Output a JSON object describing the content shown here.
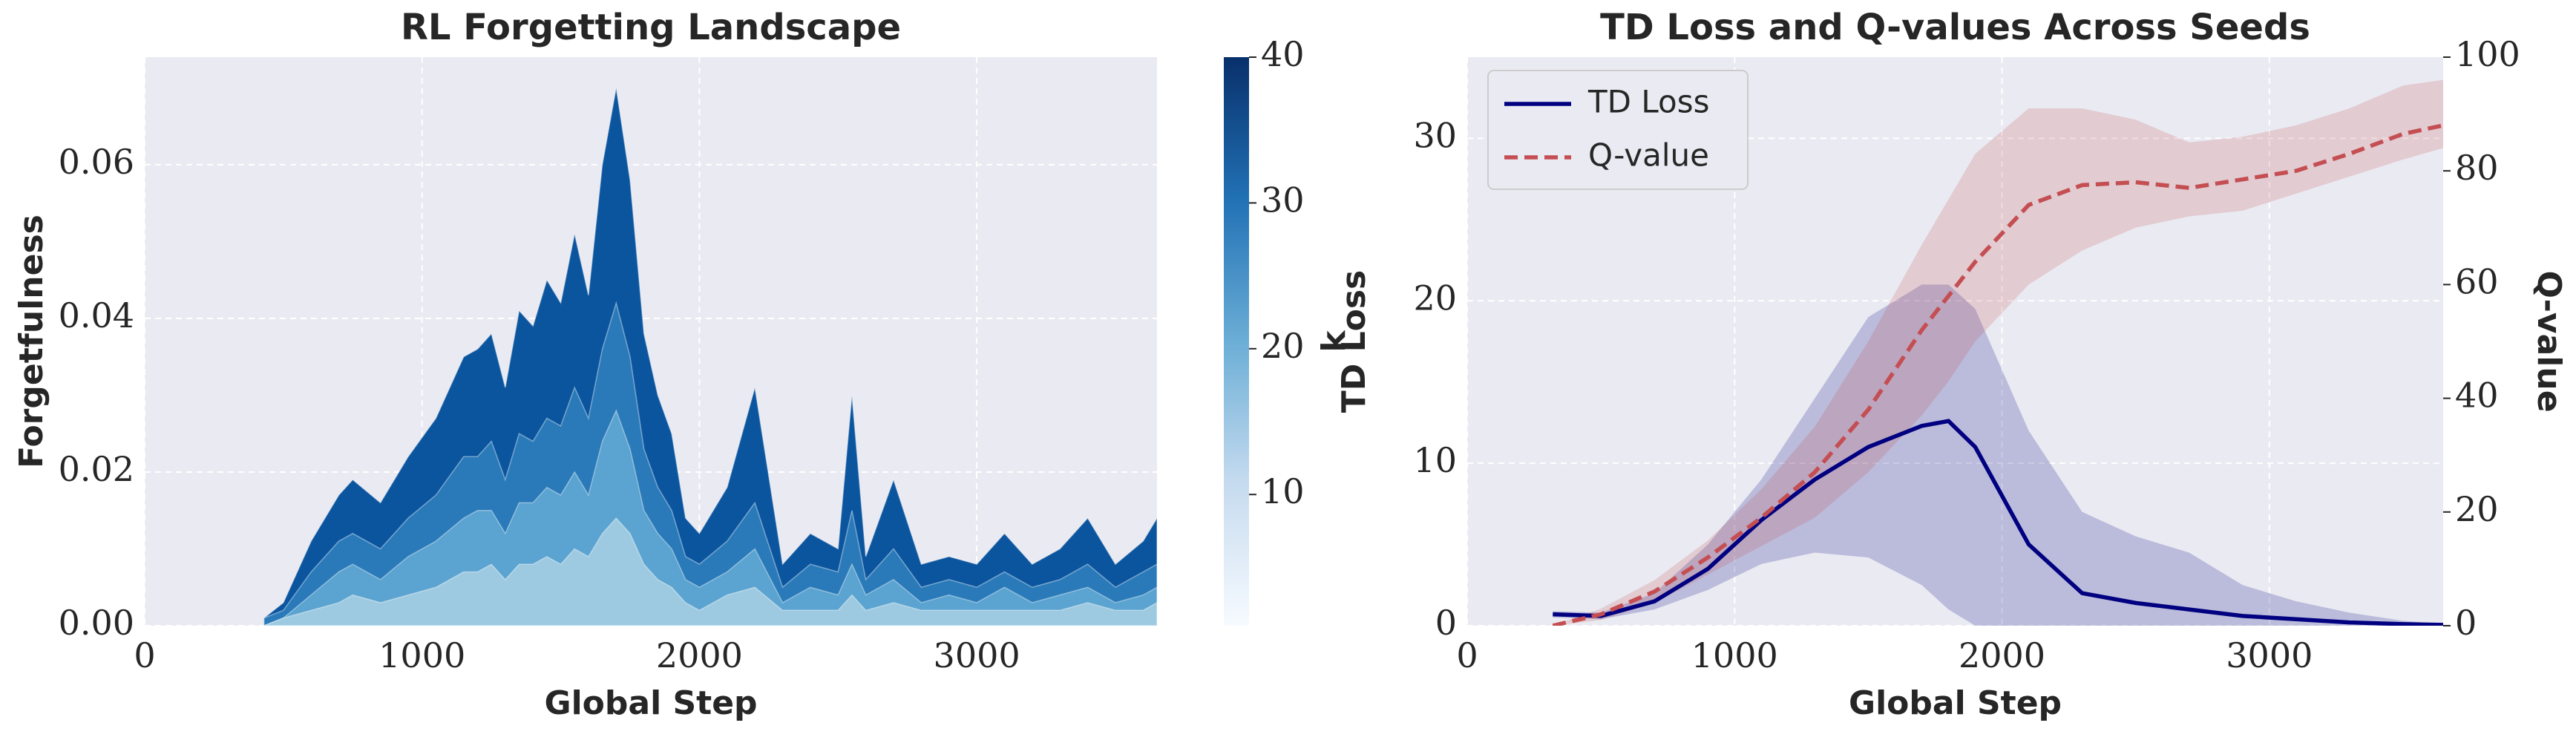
{
  "chart_data": [
    {
      "type": "area",
      "title": "RL Forgetting Landscape",
      "xlabel": "Global Step",
      "ylabel": "Forgetfulness",
      "x": [
        430,
        500,
        600,
        700,
        750,
        850,
        950,
        1050,
        1150,
        1200,
        1250,
        1300,
        1350,
        1400,
        1450,
        1500,
        1550,
        1600,
        1650,
        1700,
        1750,
        1800,
        1850,
        1900,
        1950,
        2000,
        2100,
        2200,
        2300,
        2400,
        2500,
        2550,
        2600,
        2700,
        2800,
        2900,
        3000,
        3100,
        3200,
        3300,
        3400,
        3500,
        3600,
        3650
      ],
      "series": [
        {
          "color": "#0b559f",
          "values": [
            0.001,
            0.003,
            0.011,
            0.017,
            0.019,
            0.016,
            0.022,
            0.027,
            0.035,
            0.036,
            0.038,
            0.031,
            0.041,
            0.039,
            0.045,
            0.042,
            0.051,
            0.043,
            0.06,
            0.07,
            0.058,
            0.038,
            0.03,
            0.025,
            0.014,
            0.012,
            0.018,
            0.031,
            0.008,
            0.012,
            0.01,
            0.03,
            0.009,
            0.019,
            0.008,
            0.009,
            0.008,
            0.012,
            0.008,
            0.01,
            0.014,
            0.008,
            0.011,
            0.014
          ]
        },
        {
          "color": "#2a7ab9",
          "values": [
            0.001,
            0.002,
            0.007,
            0.011,
            0.012,
            0.01,
            0.014,
            0.017,
            0.022,
            0.022,
            0.024,
            0.019,
            0.025,
            0.024,
            0.027,
            0.026,
            0.031,
            0.027,
            0.036,
            0.042,
            0.035,
            0.023,
            0.018,
            0.015,
            0.009,
            0.008,
            0.011,
            0.016,
            0.005,
            0.008,
            0.007,
            0.015,
            0.006,
            0.01,
            0.005,
            0.006,
            0.005,
            0.007,
            0.005,
            0.006,
            0.008,
            0.005,
            0.007,
            0.008
          ]
        },
        {
          "color": "#5ba3d0",
          "values": [
            0,
            0.001,
            0.004,
            0.007,
            0.008,
            0.006,
            0.009,
            0.011,
            0.014,
            0.015,
            0.015,
            0.012,
            0.016,
            0.016,
            0.018,
            0.017,
            0.02,
            0.017,
            0.024,
            0.028,
            0.023,
            0.015,
            0.012,
            0.01,
            0.006,
            0.005,
            0.007,
            0.01,
            0.003,
            0.005,
            0.004,
            0.008,
            0.004,
            0.006,
            0.003,
            0.004,
            0.003,
            0.005,
            0.003,
            0.004,
            0.005,
            0.003,
            0.004,
            0.005
          ]
        },
        {
          "color": "#9ecae1",
          "values": [
            0,
            0.001,
            0.002,
            0.003,
            0.004,
            0.003,
            0.004,
            0.005,
            0.007,
            0.007,
            0.008,
            0.006,
            0.008,
            0.008,
            0.009,
            0.008,
            0.01,
            0.009,
            0.012,
            0.014,
            0.012,
            0.008,
            0.006,
            0.005,
            0.003,
            0.002,
            0.004,
            0.005,
            0.002,
            0.002,
            0.002,
            0.004,
            0.002,
            0.003,
            0.002,
            0.002,
            0.002,
            0.002,
            0.002,
            0.002,
            0.003,
            0.002,
            0.002,
            0.003
          ]
        }
      ],
      "xlim": [
        0,
        3650
      ],
      "xticks": [
        0,
        1000,
        2000,
        3000
      ],
      "ylim": [
        0,
        0.074
      ],
      "yticks": [
        {
          "value": 0,
          "label": "0.00"
        },
        {
          "value": 0.02,
          "label": "0.02"
        },
        {
          "value": 0.04,
          "label": "0.04"
        },
        {
          "value": 0.06,
          "label": "0.06"
        }
      ],
      "grid": true,
      "colorbar": {
        "label": "k",
        "lim": [
          1,
          40
        ],
        "ticks": [
          10,
          20,
          30,
          40
        ]
      }
    },
    {
      "type": "line",
      "title": "TD Loss and Q-values Across Seeds",
      "xlabel": "Global Step",
      "ylabel": "TD Loss",
      "y2label": "Q-value",
      "x": [
        320,
        500,
        700,
        900,
        1100,
        1300,
        1500,
        1700,
        1800,
        1900,
        2100,
        2300,
        2500,
        2700,
        2900,
        3100,
        3300,
        3500,
        3650
      ],
      "series": [
        {
          "name": "TD Loss",
          "color": "#000080",
          "dashed": false,
          "values": [
            0.7,
            0.6,
            1.5,
            3.5,
            6.5,
            9,
            11,
            12.3,
            12.6,
            11,
            5,
            2,
            1.4,
            1.0,
            0.6,
            0.4,
            0.2,
            0.1,
            0.05
          ],
          "lower": [
            0.5,
            0.4,
            1,
            2.2,
            3.8,
            4.5,
            4.2,
            2.5,
            1,
            0,
            0,
            0,
            0,
            0,
            0,
            0,
            0,
            0,
            0
          ],
          "upper": [
            0.9,
            0.8,
            2,
            5,
            9,
            14,
            19,
            21,
            21,
            19.5,
            12,
            7,
            5.5,
            4.5,
            2.5,
            1.5,
            0.8,
            0.3,
            0.1
          ]
        },
        {
          "name": "Q-value",
          "color": "#c44e52",
          "dashed": true,
          "axis": "y2",
          "values": [
            0,
            2,
            6,
            12,
            19,
            27,
            38,
            52,
            58,
            64,
            74,
            77.5,
            78,
            77,
            78.5,
            80,
            83,
            86.5,
            88
          ],
          "lower": [
            0,
            1,
            4,
            9,
            14,
            19,
            27,
            37,
            43,
            50,
            60,
            66,
            70,
            72,
            73,
            76,
            79,
            82,
            84
          ],
          "upper": [
            0,
            3,
            8,
            15,
            24,
            35,
            50,
            67,
            75,
            83,
            91,
            91,
            89,
            85,
            86,
            88,
            91,
            95,
            96
          ]
        }
      ],
      "xlim": [
        0,
        3650
      ],
      "xticks": [
        0,
        1000,
        2000,
        3000
      ],
      "ylim": [
        0,
        35
      ],
      "yticks": [
        0,
        10,
        20,
        30
      ],
      "y2lim": [
        0,
        100
      ],
      "y2ticks": [
        0,
        20,
        40,
        60,
        80,
        100
      ],
      "grid": true,
      "legend": "upper left"
    }
  ]
}
